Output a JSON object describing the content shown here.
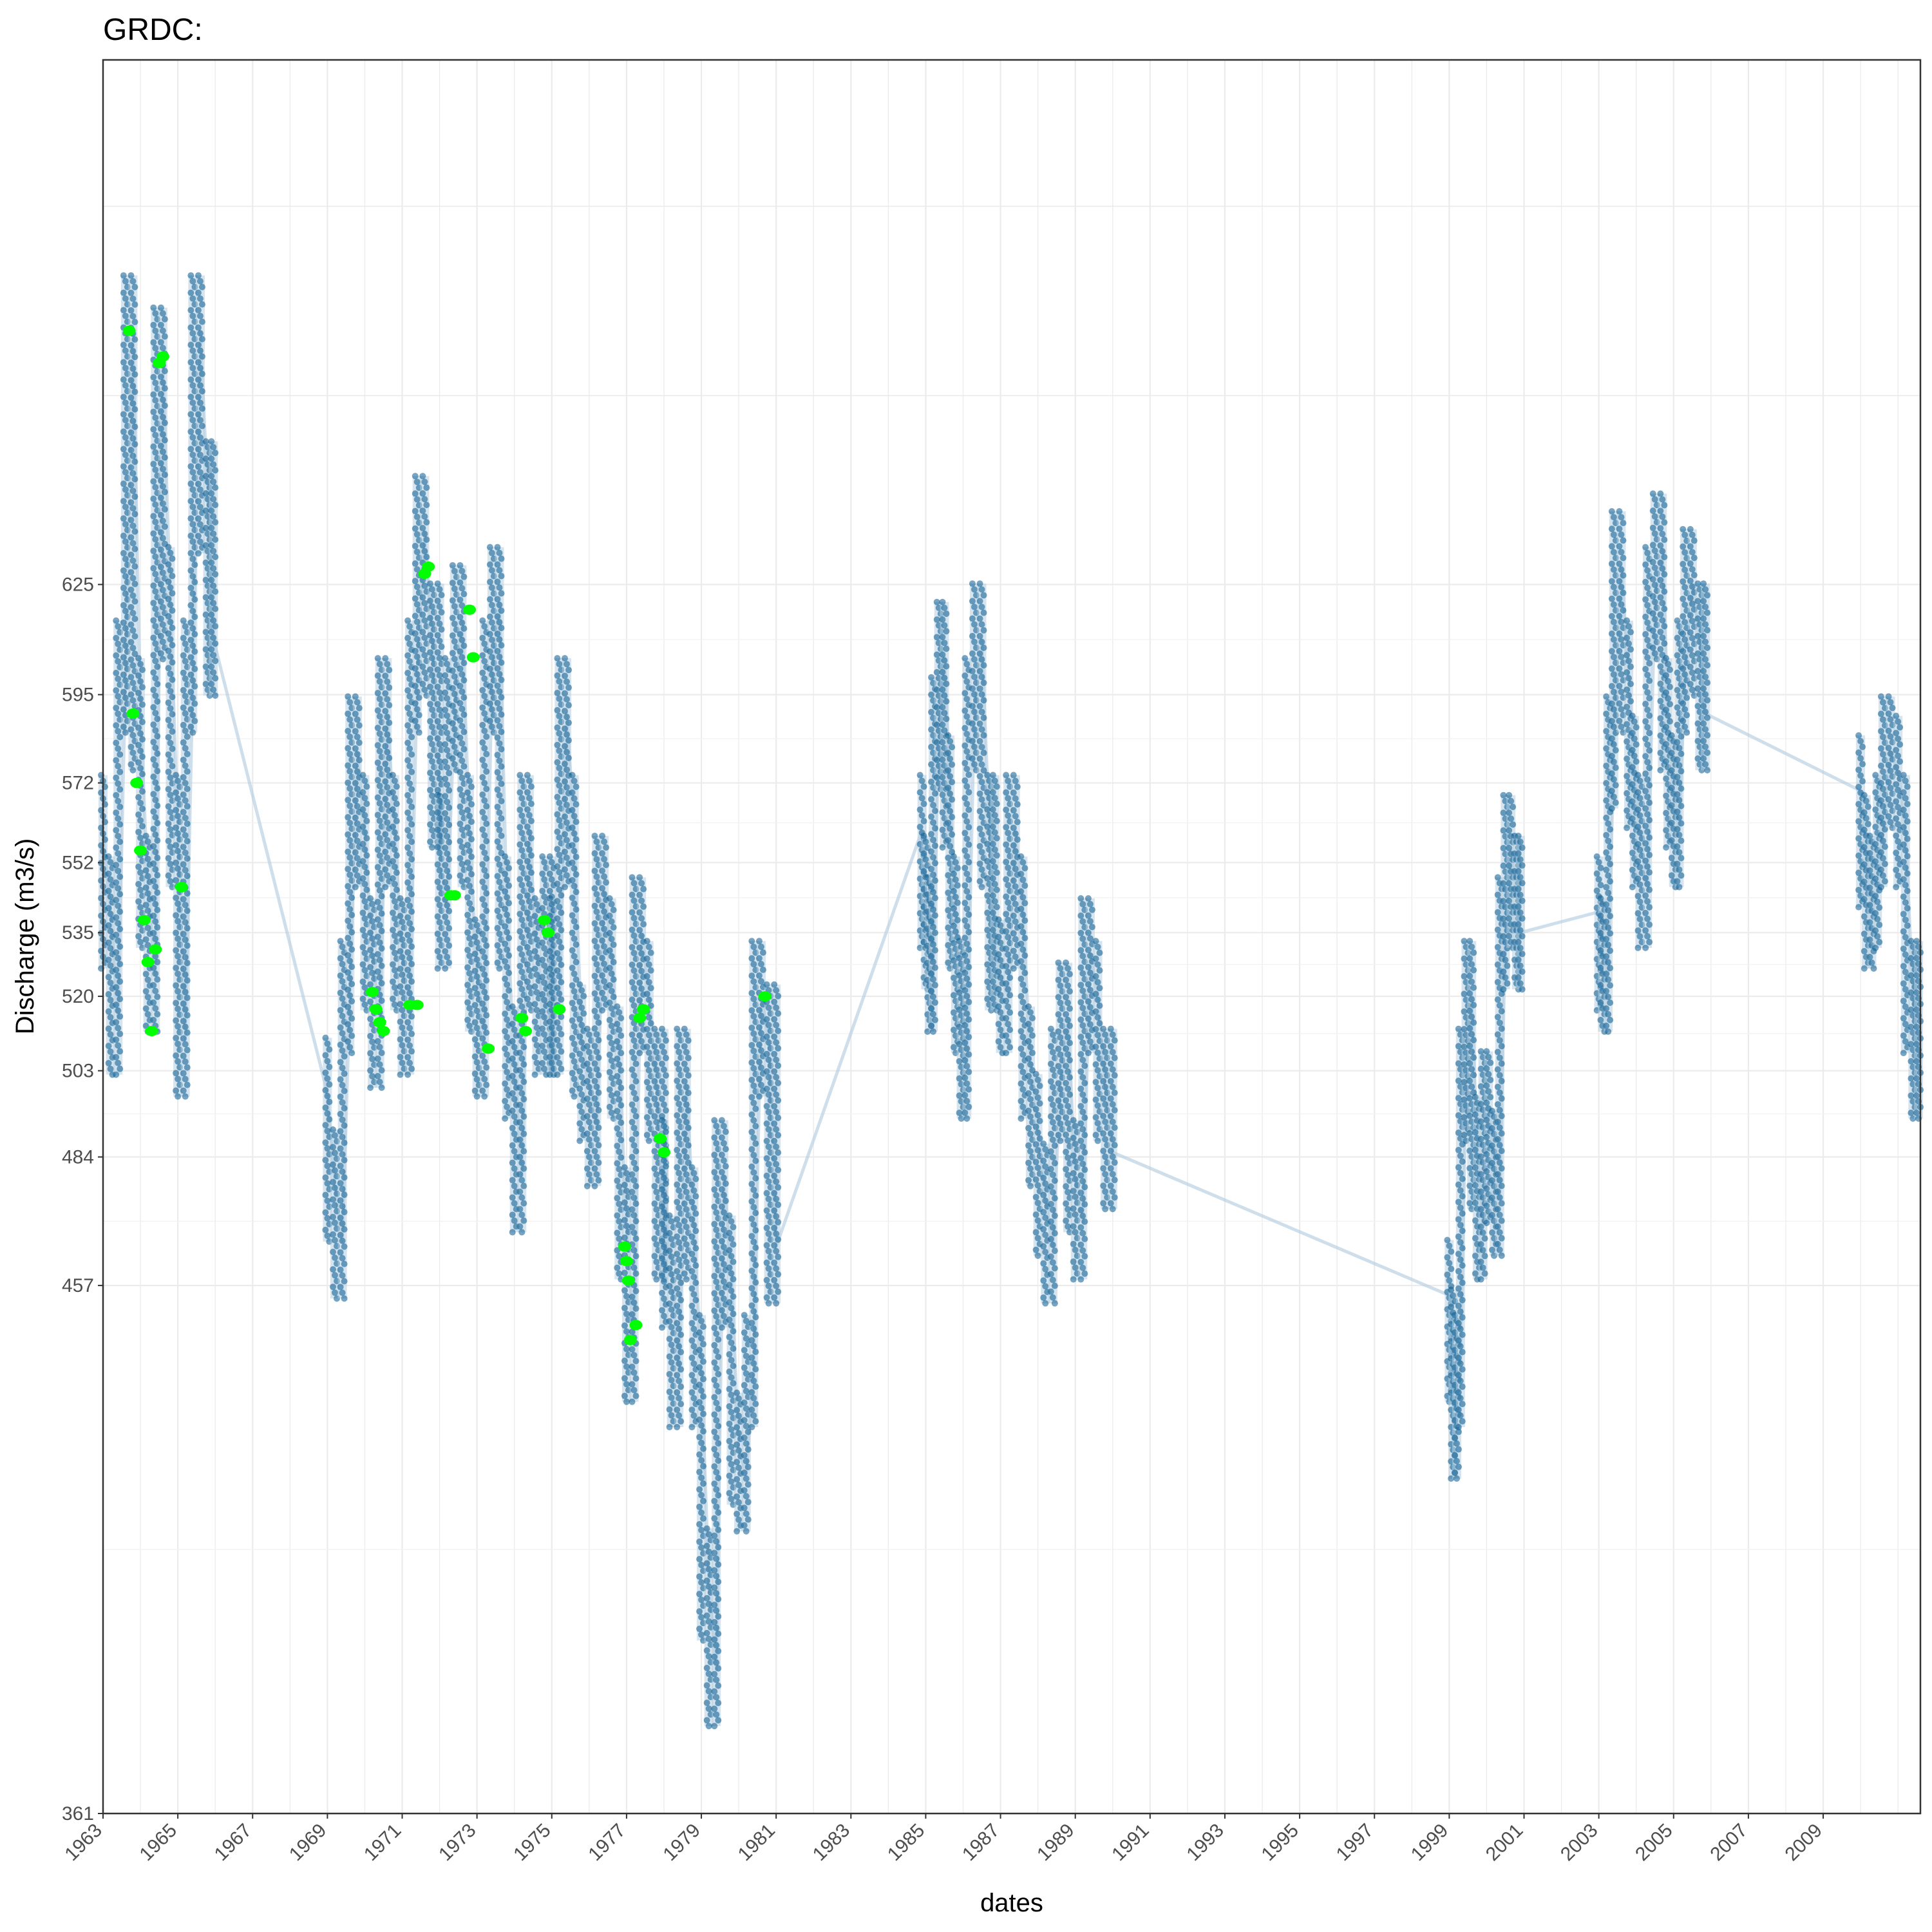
{
  "chart_data": {
    "type": "scatter",
    "title": "GRDC:",
    "xlabel": "dates",
    "ylabel": "Discharge (m3/s)",
    "y_scale": "log",
    "xlim": [
      1963.0,
      2011.6
    ],
    "ylim": [
      361,
      790
    ],
    "y_ticks": [
      361,
      457,
      484,
      503,
      520,
      535,
      552,
      572,
      595,
      625
    ],
    "x_ticks": [
      "1963",
      "1965",
      "1967",
      "1969",
      "1971",
      "1973",
      "1975",
      "1977",
      "1979",
      "1981",
      "1983",
      "1985",
      "1987",
      "1989",
      "1991",
      "1993",
      "1995",
      "1997",
      "1999",
      "2001",
      "2003",
      "2005",
      "2007",
      "2009"
    ],
    "grid": true,
    "colors": {
      "observed": "#05598f",
      "line": "#b3cde0",
      "highlight": "#00ff00"
    },
    "series": [
      {
        "kind": "observed",
        "segments": [
          {
            "range": [
              1963.0,
              1965.95
            ],
            "points": [
              [
                1963.0,
                560
              ],
              [
                1963.2,
                540
              ],
              [
                1963.4,
                515
              ],
              [
                1963.6,
                600
              ],
              [
                1963.8,
                700
              ],
              [
                1964.0,
                590
              ],
              [
                1964.2,
                545
              ],
              [
                1964.4,
                525
              ],
              [
                1964.6,
                690
              ],
              [
                1964.8,
                620
              ],
              [
                1965.0,
                560
              ],
              [
                1965.2,
                510
              ],
              [
                1965.4,
                600
              ],
              [
                1965.6,
                700
              ],
              [
                1965.8,
                650
              ],
              [
                1965.95,
                610
              ]
            ]
          },
          {
            "range": [
              1969.0,
              1972.0
            ],
            "points": [
              [
                1969.0,
                498
              ],
              [
                1969.2,
                478
              ],
              [
                1969.4,
                466
              ],
              [
                1969.6,
                520
              ],
              [
                1969.8,
                580
              ],
              [
                1970.0,
                560
              ],
              [
                1970.2,
                530
              ],
              [
                1970.4,
                512
              ],
              [
                1970.6,
                590
              ],
              [
                1970.8,
                560
              ],
              [
                1971.0,
                530
              ],
              [
                1971.2,
                515
              ],
              [
                1971.4,
                600
              ],
              [
                1971.6,
                640
              ],
              [
                1971.8,
                610
              ],
              [
                1972.0,
                570
              ]
            ]
          },
          {
            "range": [
              1972.0,
              1975.0
            ],
            "points": [
              [
                1972.0,
                555
              ],
              [
                1972.2,
                540
              ],
              [
                1972.4,
                590
              ],
              [
                1972.6,
                615
              ],
              [
                1972.8,
                560
              ],
              [
                1973.0,
                525
              ],
              [
                1973.2,
                510
              ],
              [
                1973.4,
                600
              ],
              [
                1973.6,
                620
              ],
              [
                1973.8,
                540
              ],
              [
                1974.0,
                505
              ],
              [
                1974.2,
                480
              ],
              [
                1974.4,
                560
              ],
              [
                1974.6,
                530
              ],
              [
                1974.8,
                515
              ],
              [
                1975.0,
                540
              ]
            ]
          },
          {
            "range": [
              1975.0,
              1978.0
            ],
            "points": [
              [
                1975.0,
                530
              ],
              [
                1975.2,
                515
              ],
              [
                1975.4,
                590
              ],
              [
                1975.6,
                560
              ],
              [
                1975.8,
                510
              ],
              [
                1976.0,
                500
              ],
              [
                1976.2,
                490
              ],
              [
                1976.4,
                545
              ],
              [
                1976.6,
                530
              ],
              [
                1976.8,
                505
              ],
              [
                1977.0,
                470
              ],
              [
                1977.2,
                445
              ],
              [
                1977.4,
                535
              ],
              [
                1977.6,
                520
              ],
              [
                1977.8,
                500
              ],
              [
                1978.0,
                470
              ]
            ]
          },
          {
            "range": [
              1978.0,
              1981.0
            ],
            "points": [
              [
                1978.0,
                480
              ],
              [
                1978.2,
                460
              ],
              [
                1978.4,
                440
              ],
              [
                1978.6,
                500
              ],
              [
                1978.8,
                470
              ],
              [
                1979.0,
                440
              ],
              [
                1979.2,
                400
              ],
              [
                1979.4,
                385
              ],
              [
                1979.6,
                480
              ],
              [
                1979.8,
                460
              ],
              [
                1980.0,
                425
              ],
              [
                1980.2,
                420
              ],
              [
                1980.4,
                440
              ],
              [
                1980.6,
                520
              ],
              [
                1980.8,
                510
              ],
              [
                1981.0,
                465
              ]
            ]
          },
          {
            "range": [
              1984.9,
              1987.0
            ],
            "points": [
              [
                1984.9,
                560
              ],
              [
                1985.0,
                545
              ],
              [
                1985.1,
                535
              ],
              [
                1985.2,
                525
              ],
              [
                1985.35,
                585
              ],
              [
                1985.5,
                605
              ],
              [
                1985.65,
                570
              ],
              [
                1985.8,
                540
              ],
              [
                1985.95,
                520
              ],
              [
                1986.1,
                505
              ],
              [
                1986.3,
                590
              ],
              [
                1986.5,
                610
              ],
              [
                1986.7,
                560
              ],
              [
                1986.85,
                530
              ]
            ]
          },
          {
            "range": [
              1987.0,
              1990.0
            ],
            "points": [
              [
                1987.0,
                525
              ],
              [
                1987.2,
                520
              ],
              [
                1987.4,
                560
              ],
              [
                1987.6,
                540
              ],
              [
                1987.8,
                505
              ],
              [
                1988.0,
                490
              ],
              [
                1988.2,
                475
              ],
              [
                1988.4,
                465
              ],
              [
                1988.6,
                500
              ],
              [
                1988.8,
                515
              ],
              [
                1989.0,
                480
              ],
              [
                1989.2,
                470
              ],
              [
                1989.4,
                530
              ],
              [
                1989.6,
                520
              ],
              [
                1989.8,
                500
              ],
              [
                1990.0,
                485
              ]
            ]
          },
          {
            "range": [
              1999.0,
              2001.0
            ],
            "points": [
              [
                1999.0,
                455
              ],
              [
                1999.1,
                445
              ],
              [
                1999.2,
                430
              ],
              [
                1999.3,
                440
              ],
              [
                1999.45,
                500
              ],
              [
                1999.6,
                520
              ],
              [
                1999.75,
                485
              ],
              [
                1999.9,
                470
              ],
              [
                2000.05,
                495
              ],
              [
                2000.2,
                482
              ],
              [
                2000.35,
                475
              ],
              [
                2000.5,
                535
              ],
              [
                2000.65,
                555
              ],
              [
                2000.8,
                545
              ],
              [
                2000.9,
                535
              ]
            ]
          },
          {
            "range": [
              2003.0,
              2006.0
            ],
            "points": [
              [
                2003.0,
                540
              ],
              [
                2003.1,
                530
              ],
              [
                2003.25,
                525
              ],
              [
                2003.4,
                580
              ],
              [
                2003.6,
                630
              ],
              [
                2003.8,
                600
              ],
              [
                2003.95,
                575
              ],
              [
                2004.1,
                560
              ],
              [
                2004.3,
                545
              ],
              [
                2004.5,
                620
              ],
              [
                2004.7,
                635
              ],
              [
                2004.85,
                590
              ],
              [
                2005.0,
                570
              ],
              [
                2005.15,
                560
              ],
              [
                2005.3,
                600
              ],
              [
                2005.5,
                625
              ],
              [
                2005.7,
                610
              ],
              [
                2005.85,
                590
              ]
            ]
          },
          {
            "range": [
              2010.0,
              2011.6
            ],
            "points": [
              [
                2010.0,
                570
              ],
              [
                2010.15,
                555
              ],
              [
                2010.3,
                540
              ],
              [
                2010.45,
                545
              ],
              [
                2010.6,
                560
              ],
              [
                2010.8,
                580
              ],
              [
                2011.0,
                575
              ],
              [
                2011.2,
                560
              ],
              [
                2011.4,
                520
              ],
              [
                2011.55,
                505
              ]
            ]
          }
        ]
      },
      {
        "kind": "highlight",
        "points": [
          [
            1963.7,
            700
          ],
          [
            1963.8,
            590
          ],
          [
            1963.9,
            572
          ],
          [
            1964.0,
            555
          ],
          [
            1964.1,
            538
          ],
          [
            1964.2,
            528
          ],
          [
            1964.3,
            512
          ],
          [
            1964.4,
            531
          ],
          [
            1964.5,
            690
          ],
          [
            1964.6,
            692
          ],
          [
            1965.1,
            546
          ],
          [
            1970.2,
            521
          ],
          [
            1970.3,
            517
          ],
          [
            1970.4,
            514
          ],
          [
            1970.5,
            512
          ],
          [
            1971.2,
            518
          ],
          [
            1971.4,
            518
          ],
          [
            1971.6,
            628
          ],
          [
            1971.7,
            630
          ],
          [
            1972.3,
            544
          ],
          [
            1972.4,
            544
          ],
          [
            1972.8,
            618
          ],
          [
            1972.9,
            605
          ],
          [
            1973.3,
            508
          ],
          [
            1974.2,
            515
          ],
          [
            1974.3,
            512
          ],
          [
            1974.8,
            538
          ],
          [
            1974.9,
            535
          ],
          [
            1975.2,
            517
          ],
          [
            1976.95,
            465
          ],
          [
            1977.0,
            462
          ],
          [
            1977.05,
            458
          ],
          [
            1977.1,
            446
          ],
          [
            1977.25,
            449
          ],
          [
            1977.35,
            515
          ],
          [
            1977.45,
            517
          ],
          [
            1977.9,
            488
          ],
          [
            1978.0,
            485
          ],
          [
            1980.7,
            520
          ]
        ]
      }
    ]
  }
}
